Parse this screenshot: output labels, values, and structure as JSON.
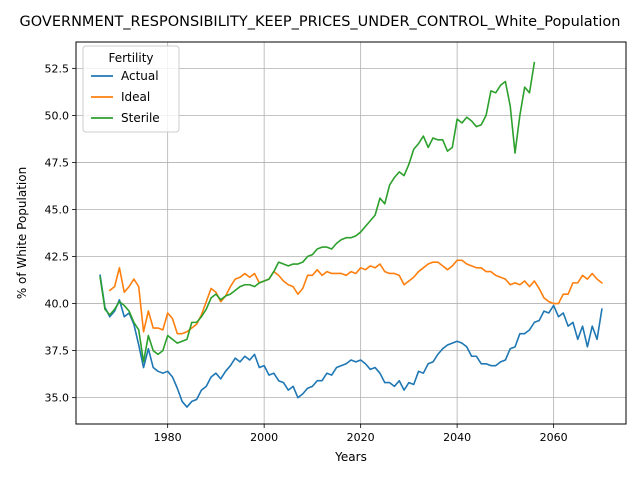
{
  "chart_data": {
    "type": "line",
    "title": "GOVERNMENT_RESPONSIBILITY_KEEP_PRICES_UNDER_CONTROL_White_Population",
    "xlabel": "Years",
    "ylabel": "% of White Population",
    "xlim": [
      1961,
      2075
    ],
    "ylim": [
      33.6,
      53.9
    ],
    "x_ticks": [
      1980,
      2000,
      2020,
      2040,
      2060
    ],
    "y_ticks": [
      35.0,
      37.5,
      40.0,
      42.5,
      45.0,
      47.5,
      50.0,
      52.5
    ],
    "grid": true,
    "legend": {
      "title": "Fertility",
      "position": "top-left"
    },
    "series": [
      {
        "name": "Actual",
        "color": "#1f77b4",
        "points": [
          [
            1966,
            41.5
          ],
          [
            1967,
            39.8
          ],
          [
            1968,
            39.3
          ],
          [
            1969,
            39.6
          ],
          [
            1970,
            40.2
          ],
          [
            1971,
            39.3
          ],
          [
            1972,
            39.5
          ],
          [
            1973,
            38.9
          ],
          [
            1974,
            37.8
          ],
          [
            1975,
            36.6
          ],
          [
            1976,
            37.6
          ],
          [
            1977,
            36.6
          ],
          [
            1978,
            36.4
          ],
          [
            1979,
            36.3
          ],
          [
            1980,
            36.4
          ],
          [
            1981,
            36.1
          ],
          [
            1982,
            35.5
          ],
          [
            1983,
            34.8
          ],
          [
            1984,
            34.5
          ],
          [
            1985,
            34.8
          ],
          [
            1986,
            34.9
          ],
          [
            1987,
            35.4
          ],
          [
            1988,
            35.6
          ],
          [
            1989,
            36.1
          ],
          [
            1990,
            36.3
          ],
          [
            1991,
            36.0
          ],
          [
            1992,
            36.4
          ],
          [
            1993,
            36.7
          ],
          [
            1994,
            37.1
          ],
          [
            1995,
            36.9
          ],
          [
            1996,
            37.2
          ],
          [
            1997,
            37.0
          ],
          [
            1998,
            37.3
          ],
          [
            1999,
            36.6
          ],
          [
            2000,
            36.7
          ],
          [
            2001,
            36.2
          ],
          [
            2002,
            36.3
          ],
          [
            2003,
            35.9
          ],
          [
            2004,
            35.8
          ],
          [
            2005,
            35.4
          ],
          [
            2006,
            35.6
          ],
          [
            2007,
            35.0
          ],
          [
            2008,
            35.2
          ],
          [
            2009,
            35.5
          ],
          [
            2010,
            35.6
          ],
          [
            2011,
            35.9
          ],
          [
            2012,
            35.9
          ],
          [
            2013,
            36.3
          ],
          [
            2014,
            36.2
          ],
          [
            2015,
            36.6
          ],
          [
            2016,
            36.7
          ],
          [
            2017,
            36.8
          ],
          [
            2018,
            37.0
          ],
          [
            2019,
            36.9
          ],
          [
            2020,
            37.0
          ],
          [
            2021,
            36.8
          ],
          [
            2022,
            36.5
          ],
          [
            2023,
            36.6
          ],
          [
            2024,
            36.3
          ],
          [
            2025,
            35.8
          ],
          [
            2026,
            35.8
          ],
          [
            2027,
            35.6
          ],
          [
            2028,
            35.9
          ],
          [
            2029,
            35.4
          ],
          [
            2030,
            35.8
          ],
          [
            2031,
            35.7
          ],
          [
            2032,
            36.4
          ],
          [
            2033,
            36.3
          ],
          [
            2034,
            36.8
          ],
          [
            2035,
            36.9
          ],
          [
            2036,
            37.3
          ],
          [
            2037,
            37.6
          ],
          [
            2038,
            37.8
          ],
          [
            2039,
            37.9
          ],
          [
            2040,
            38.0
          ],
          [
            2041,
            37.9
          ],
          [
            2042,
            37.7
          ],
          [
            2043,
            37.2
          ],
          [
            2044,
            37.2
          ],
          [
            2045,
            36.8
          ],
          [
            2046,
            36.8
          ],
          [
            2047,
            36.7
          ],
          [
            2048,
            36.7
          ],
          [
            2049,
            36.9
          ],
          [
            2050,
            37.0
          ],
          [
            2051,
            37.6
          ],
          [
            2052,
            37.7
          ],
          [
            2053,
            38.4
          ],
          [
            2054,
            38.4
          ],
          [
            2055,
            38.6
          ],
          [
            2056,
            39.0
          ],
          [
            2057,
            39.1
          ],
          [
            2058,
            39.6
          ],
          [
            2059,
            39.5
          ],
          [
            2060,
            39.9
          ],
          [
            2061,
            39.3
          ],
          [
            2062,
            39.5
          ],
          [
            2063,
            38.8
          ],
          [
            2064,
            39.0
          ],
          [
            2065,
            38.1
          ],
          [
            2066,
            38.8
          ],
          [
            2067,
            37.7
          ],
          [
            2068,
            38.8
          ],
          [
            2069,
            38.1
          ],
          [
            2070,
            39.7
          ]
        ]
      },
      {
        "name": "Ideal",
        "color": "#ff7f0e",
        "points": [
          [
            1968,
            40.7
          ],
          [
            1969,
            40.9
          ],
          [
            1970,
            41.9
          ],
          [
            1971,
            40.6
          ],
          [
            1972,
            40.9
          ],
          [
            1973,
            41.3
          ],
          [
            1974,
            40.9
          ],
          [
            1975,
            38.5
          ],
          [
            1976,
            39.6
          ],
          [
            1977,
            38.7
          ],
          [
            1978,
            38.7
          ],
          [
            1979,
            38.6
          ],
          [
            1980,
            39.5
          ],
          [
            1981,
            39.2
          ],
          [
            1982,
            38.4
          ],
          [
            1983,
            38.4
          ],
          [
            1984,
            38.5
          ],
          [
            1985,
            38.7
          ],
          [
            1986,
            38.9
          ],
          [
            1987,
            39.4
          ],
          [
            1988,
            40.1
          ],
          [
            1989,
            40.8
          ],
          [
            1990,
            40.6
          ],
          [
            1991,
            40.1
          ],
          [
            1992,
            40.4
          ],
          [
            1993,
            40.9
          ],
          [
            1994,
            41.3
          ],
          [
            1995,
            41.4
          ],
          [
            1996,
            41.6
          ],
          [
            1997,
            41.4
          ],
          [
            1998,
            41.6
          ],
          [
            1999,
            41.1
          ],
          [
            2000,
            41.2
          ],
          [
            2001,
            41.3
          ],
          [
            2002,
            41.7
          ],
          [
            2003,
            41.5
          ],
          [
            2004,
            41.2
          ],
          [
            2005,
            41.0
          ],
          [
            2006,
            40.9
          ],
          [
            2007,
            40.5
          ],
          [
            2008,
            40.8
          ],
          [
            2009,
            41.5
          ],
          [
            2010,
            41.5
          ],
          [
            2011,
            41.8
          ],
          [
            2012,
            41.5
          ],
          [
            2013,
            41.7
          ],
          [
            2014,
            41.6
          ],
          [
            2015,
            41.6
          ],
          [
            2016,
            41.6
          ],
          [
            2017,
            41.5
          ],
          [
            2018,
            41.7
          ],
          [
            2019,
            41.6
          ],
          [
            2020,
            41.9
          ],
          [
            2021,
            41.8
          ],
          [
            2022,
            42.0
          ],
          [
            2023,
            41.9
          ],
          [
            2024,
            42.1
          ],
          [
            2025,
            41.7
          ],
          [
            2026,
            41.6
          ],
          [
            2027,
            41.6
          ],
          [
            2028,
            41.5
          ],
          [
            2029,
            41.0
          ],
          [
            2030,
            41.2
          ],
          [
            2031,
            41.4
          ],
          [
            2032,
            41.7
          ],
          [
            2033,
            41.9
          ],
          [
            2034,
            42.1
          ],
          [
            2035,
            42.2
          ],
          [
            2036,
            42.2
          ],
          [
            2037,
            42.0
          ],
          [
            2038,
            41.8
          ],
          [
            2039,
            42.0
          ],
          [
            2040,
            42.3
          ],
          [
            2041,
            42.3
          ],
          [
            2042,
            42.1
          ],
          [
            2043,
            42.0
          ],
          [
            2044,
            41.9
          ],
          [
            2045,
            41.9
          ],
          [
            2046,
            41.7
          ],
          [
            2047,
            41.7
          ],
          [
            2048,
            41.5
          ],
          [
            2049,
            41.4
          ],
          [
            2050,
            41.3
          ],
          [
            2051,
            41.0
          ],
          [
            2052,
            41.1
          ],
          [
            2053,
            41.0
          ],
          [
            2054,
            41.2
          ],
          [
            2055,
            40.9
          ],
          [
            2056,
            41.2
          ],
          [
            2057,
            40.8
          ],
          [
            2058,
            40.3
          ],
          [
            2059,
            40.1
          ],
          [
            2060,
            40.0
          ],
          [
            2061,
            40.0
          ],
          [
            2062,
            40.5
          ],
          [
            2063,
            40.5
          ],
          [
            2064,
            41.1
          ],
          [
            2065,
            41.1
          ],
          [
            2066,
            41.5
          ],
          [
            2067,
            41.3
          ],
          [
            2068,
            41.6
          ],
          [
            2069,
            41.3
          ],
          [
            2070,
            41.1
          ]
        ]
      },
      {
        "name": "Sterile",
        "color": "#2ca02c",
        "points": [
          [
            1966,
            41.4
          ],
          [
            1967,
            39.7
          ],
          [
            1968,
            39.4
          ],
          [
            1969,
            39.7
          ],
          [
            1970,
            40.1
          ],
          [
            1971,
            39.9
          ],
          [
            1972,
            39.6
          ],
          [
            1973,
            39.0
          ],
          [
            1974,
            38.6
          ],
          [
            1975,
            36.9
          ],
          [
            1976,
            38.3
          ],
          [
            1977,
            37.5
          ],
          [
            1978,
            37.3
          ],
          [
            1979,
            37.5
          ],
          [
            1980,
            38.3
          ],
          [
            1981,
            38.1
          ],
          [
            1982,
            37.9
          ],
          [
            1983,
            38.0
          ],
          [
            1984,
            38.1
          ],
          [
            1985,
            39.0
          ],
          [
            1986,
            39.0
          ],
          [
            1987,
            39.3
          ],
          [
            1988,
            39.7
          ],
          [
            1989,
            40.3
          ],
          [
            1990,
            40.5
          ],
          [
            1991,
            40.2
          ],
          [
            1992,
            40.4
          ],
          [
            1993,
            40.5
          ],
          [
            1994,
            40.7
          ],
          [
            1995,
            40.9
          ],
          [
            1996,
            41.0
          ],
          [
            1997,
            41.0
          ],
          [
            1998,
            40.9
          ],
          [
            1999,
            41.1
          ],
          [
            2000,
            41.2
          ],
          [
            2001,
            41.3
          ],
          [
            2002,
            41.7
          ],
          [
            2003,
            42.2
          ],
          [
            2004,
            42.1
          ],
          [
            2005,
            42.0
          ],
          [
            2006,
            42.1
          ],
          [
            2007,
            42.1
          ],
          [
            2008,
            42.2
          ],
          [
            2009,
            42.5
          ],
          [
            2010,
            42.6
          ],
          [
            2011,
            42.9
          ],
          [
            2012,
            43.0
          ],
          [
            2013,
            43.0
          ],
          [
            2014,
            42.9
          ],
          [
            2015,
            43.2
          ],
          [
            2016,
            43.4
          ],
          [
            2017,
            43.5
          ],
          [
            2018,
            43.5
          ],
          [
            2019,
            43.6
          ],
          [
            2020,
            43.8
          ],
          [
            2021,
            44.1
          ],
          [
            2022,
            44.4
          ],
          [
            2023,
            44.7
          ],
          [
            2024,
            45.6
          ],
          [
            2025,
            45.3
          ],
          [
            2026,
            46.3
          ],
          [
            2027,
            46.7
          ],
          [
            2028,
            47.0
          ],
          [
            2029,
            46.8
          ],
          [
            2030,
            47.4
          ],
          [
            2031,
            48.2
          ],
          [
            2032,
            48.5
          ],
          [
            2033,
            48.9
          ],
          [
            2034,
            48.3
          ],
          [
            2035,
            48.8
          ],
          [
            2036,
            48.7
          ],
          [
            2037,
            48.7
          ],
          [
            2038,
            48.1
          ],
          [
            2039,
            48.3
          ],
          [
            2040,
            49.8
          ],
          [
            2041,
            49.6
          ],
          [
            2042,
            49.9
          ],
          [
            2043,
            49.7
          ],
          [
            2044,
            49.4
          ],
          [
            2045,
            49.5
          ],
          [
            2046,
            50.0
          ],
          [
            2047,
            51.3
          ],
          [
            2048,
            51.2
          ],
          [
            2049,
            51.6
          ],
          [
            2050,
            51.8
          ],
          [
            2051,
            50.5
          ],
          [
            2052,
            48.0
          ],
          [
            2053,
            50.0
          ],
          [
            2054,
            51.5
          ],
          [
            2055,
            51.2
          ],
          [
            2056,
            52.8
          ]
        ]
      }
    ]
  }
}
